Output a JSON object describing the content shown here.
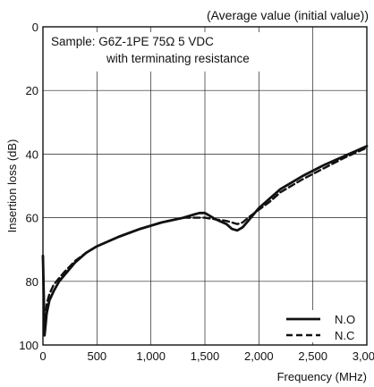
{
  "chart_data": {
    "type": "line",
    "title": "(Average value (initial value))",
    "xlabel": "Frequency (MHz)",
    "ylabel": "Insertion loss (dB)",
    "xlim": [
      0,
      3000
    ],
    "ylim": [
      0,
      100
    ],
    "y_inverted": true,
    "grid": true,
    "x_ticks": [
      0,
      500,
      1000,
      1500,
      2000,
      2500,
      3000
    ],
    "x_tick_labels": [
      "0",
      "500",
      "1,000",
      "1,500",
      "2,000",
      "2,500",
      "3,000"
    ],
    "y_ticks": [
      0,
      20,
      40,
      60,
      80,
      100
    ],
    "y_tick_labels": [
      "0",
      "20",
      "40",
      "60",
      "80",
      "100"
    ],
    "annotations": [
      {
        "text": "Sample: G6Z-1PE 75Ω 5 VDC"
      },
      {
        "text": "with terminating resistance"
      }
    ],
    "legend_position": "bottom-right",
    "series": [
      {
        "name": "N.O",
        "style": "solid",
        "x": [
          0,
          15,
          35,
          60,
          100,
          150,
          200,
          300,
          400,
          500,
          700,
          900,
          1100,
          1300,
          1400,
          1450,
          1500,
          1550,
          1600,
          1700,
          1750,
          1800,
          1850,
          1900,
          1950,
          2000,
          2100,
          2200,
          2400,
          2600,
          2800,
          3000
        ],
        "y": [
          72,
          97,
          90,
          86,
          83,
          80,
          78,
          74,
          71,
          69,
          66,
          63.5,
          61.5,
          60,
          59,
          58.5,
          58.5,
          59.5,
          60.5,
          62,
          63.5,
          64,
          63,
          61,
          59,
          57,
          54,
          51,
          47,
          43.5,
          40.5,
          37.5
        ]
      },
      {
        "name": "N.C",
        "style": "dashed",
        "x": [
          0,
          15,
          35,
          60,
          100,
          150,
          200,
          300,
          400,
          500,
          700,
          900,
          1100,
          1300,
          1400,
          1500,
          1600,
          1700,
          1800,
          1850,
          1900,
          2000,
          2100,
          2200,
          2400,
          2600,
          2800,
          3000
        ],
        "y": [
          72,
          96,
          87,
          84,
          81,
          79,
          77,
          73.5,
          71,
          69,
          66,
          63.5,
          61.5,
          60,
          60,
          60,
          60.5,
          61,
          62,
          61.5,
          60,
          57.5,
          55,
          52,
          48,
          44.5,
          41,
          38
        ]
      }
    ]
  }
}
